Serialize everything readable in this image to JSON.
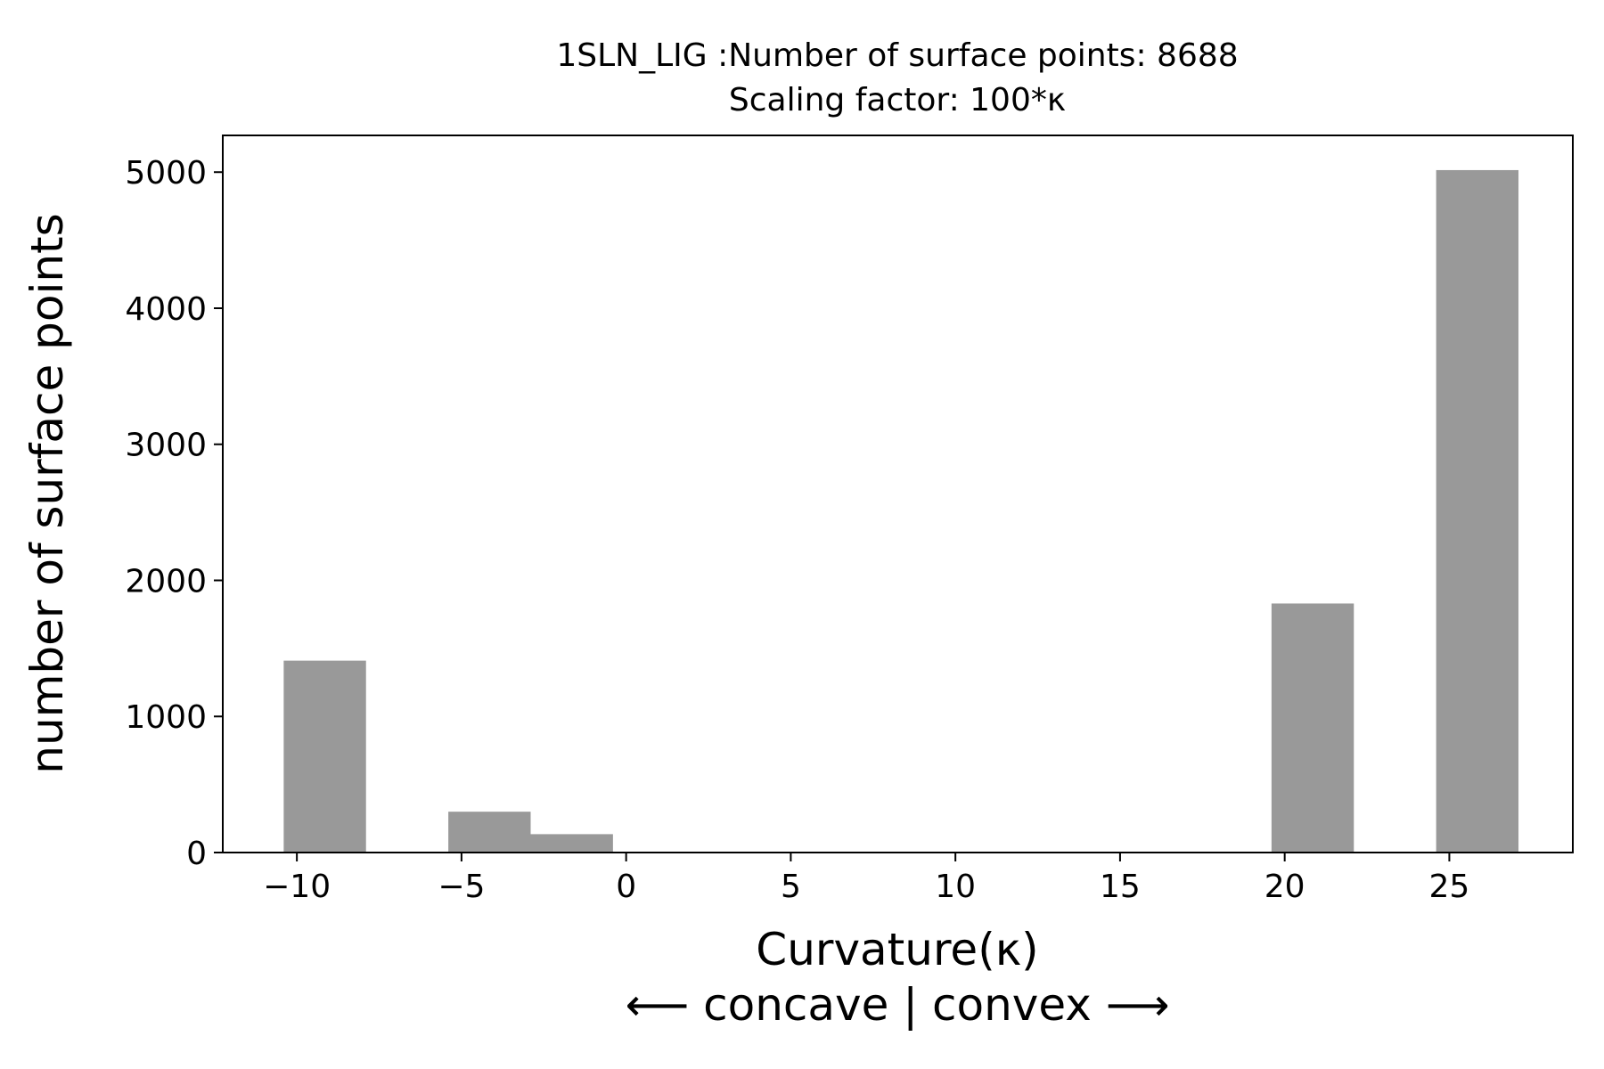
{
  "chart_data": {
    "type": "bar",
    "title": "1SLN_LIG :Number of surface points: 8688",
    "subtitle": "Scaling factor: 100*κ",
    "xlabel": "Curvature(κ)",
    "xlabel_sub": "⟵ concave | convex ⟶",
    "ylabel": "number of surface points",
    "xlim": [
      -12.25,
      28.75
    ],
    "ylim": [
      0,
      5270
    ],
    "xticks": [
      -10,
      -5,
      0,
      5,
      10,
      15,
      20,
      25
    ],
    "xtick_labels": [
      "−10",
      "−5",
      "0",
      "5",
      "10",
      "15",
      "20",
      "25"
    ],
    "yticks": [
      0,
      1000,
      2000,
      3000,
      4000,
      5000
    ],
    "ytick_labels": [
      "0",
      "1000",
      "2000",
      "3000",
      "4000",
      "5000"
    ],
    "bin_width": 2.5,
    "bins": [
      {
        "x0": -10.4,
        "x1": -7.9,
        "value": 1410
      },
      {
        "x0": -5.4,
        "x1": -2.9,
        "value": 300
      },
      {
        "x0": -2.9,
        "x1": -0.4,
        "value": 135
      },
      {
        "x0": 19.6,
        "x1": 22.1,
        "value": 1830
      },
      {
        "x0": 24.6,
        "x1": 27.1,
        "value": 5015
      }
    ],
    "bar_color": "#999999",
    "grid": false,
    "legend": "none"
  }
}
